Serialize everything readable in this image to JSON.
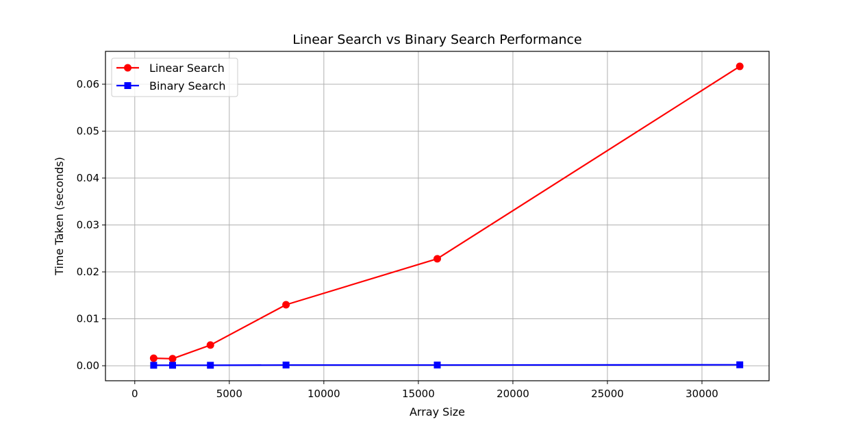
{
  "chart_data": {
    "type": "line",
    "title": "Linear Search vs Binary Search Performance",
    "xlabel": "Array Size",
    "ylabel": "Time Taken (seconds)",
    "xlim": [
      -1550,
      33550
    ],
    "ylim": [
      -0.0032,
      0.067
    ],
    "xticks": [
      0,
      5000,
      10000,
      15000,
      20000,
      25000,
      30000
    ],
    "xtick_labels": [
      "0",
      "5000",
      "10000",
      "15000",
      "20000",
      "25000",
      "30000"
    ],
    "yticks": [
      0.0,
      0.01,
      0.02,
      0.03,
      0.04,
      0.05,
      0.06
    ],
    "ytick_labels": [
      "0.00",
      "0.01",
      "0.02",
      "0.03",
      "0.04",
      "0.05",
      "0.06"
    ],
    "grid": true,
    "legend_position": "upper-left",
    "x": [
      1000,
      2000,
      4000,
      8000,
      16000,
      32000
    ],
    "series": [
      {
        "name": "Linear Search",
        "color": "#ff0000",
        "marker": "circle",
        "values": [
          0.0016,
          0.0015,
          0.0044,
          0.013,
          0.0228,
          0.0638
        ]
      },
      {
        "name": "Binary Search",
        "color": "#0000ff",
        "marker": "square",
        "values": [
          0.0001,
          0.0001,
          0.0001,
          0.00015,
          0.00015,
          0.0002
        ]
      }
    ]
  }
}
